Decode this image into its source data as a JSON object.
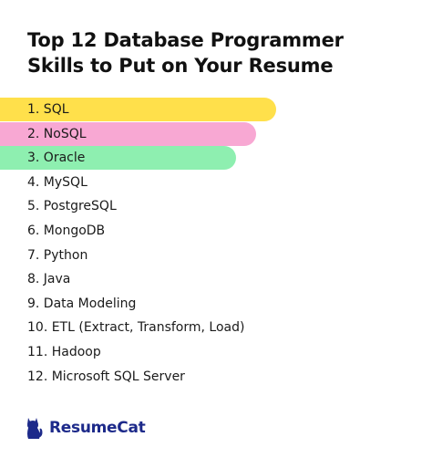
{
  "title": {
    "line1": "Top 12 Database Programmer",
    "line2": "Skills to Put on Your Resume"
  },
  "skills": [
    {
      "label": "1. SQL",
      "highlight": "#FFE04B"
    },
    {
      "label": "2. NoSQL",
      "highlight": "#F8A8D3"
    },
    {
      "label": "3. Oracle",
      "highlight": "#8EEFB0"
    },
    {
      "label": "4. MySQL"
    },
    {
      "label": "5. PostgreSQL"
    },
    {
      "label": "6. MongoDB"
    },
    {
      "label": "7. Python"
    },
    {
      "label": "8. Java"
    },
    {
      "label": "9. Data Modeling"
    },
    {
      "label": "10. ETL (Extract, Transform, Load)"
    },
    {
      "label": "11. Hadoop"
    },
    {
      "label": "12. Microsoft SQL Server"
    }
  ],
  "brand": {
    "name": "ResumeCat",
    "icon": "cat-icon",
    "color": "#1D2A8A"
  }
}
